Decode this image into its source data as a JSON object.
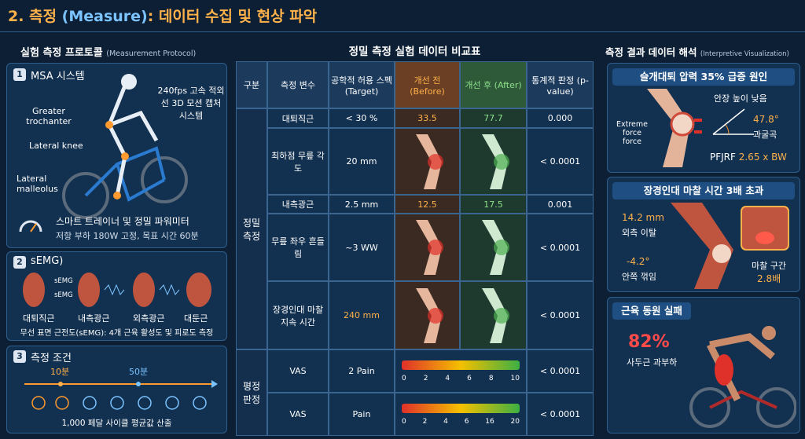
{
  "header": {
    "title_prefix": "2. 측정 ",
    "title_highlight": "(Measure)",
    "title_suffix": ": 데이터 수집 및 현상 파악"
  },
  "left": {
    "heading": "실험 측정 프로토콜",
    "heading_en": "(Measurement Protocol)",
    "msa": {
      "number": "1",
      "title": "MSA 시스템",
      "camera": "240fps 고속 적외선 3D 모션 캡처 시스템",
      "markers": [
        "Greater trochanter",
        "Lateral knee",
        "Lateral malleolus"
      ],
      "trainer": "스마트 트레이너 및 정밀 파워미터",
      "trainer_detail": "저항 부하 180W 고정, 목표 시간 60분"
    },
    "semg": {
      "number": "2",
      "title": "sEMG)",
      "sensor_labels": [
        "sEMG",
        "sEMG"
      ],
      "muscles": [
        "대퇴직근",
        "내측광근",
        "외측광근",
        "대둔근"
      ],
      "caption": "무선 표면 근전도(sEMG): 4개 근육 활성도 및 피로도 측정"
    },
    "conditions": {
      "number": "3",
      "title": "측정 조건",
      "marks": [
        "10분",
        "50분"
      ],
      "caption": "1,000 페달 사이클 평균값 산출"
    }
  },
  "table": {
    "title": "정밀 측정 실험 데이터 비교표",
    "columns": [
      "구분",
      "측정 변수",
      "공학적 허용 스펙 (Target)",
      "개선 전 (Before)",
      "개선 후 (After)",
      "통계적 판정 (p-value)"
    ],
    "groups": [
      "정밀 측정",
      "평정 판정"
    ],
    "rows": [
      {
        "variable": "대퇴직근",
        "target": "< 30 %",
        "before": 33.5,
        "after": 77.7,
        "p": "0.000"
      },
      {
        "variable": "최하점 무릎 각도",
        "target": "20 mm",
        "p": "< 0.0001"
      },
      {
        "variable": "내측광근",
        "target": "2.5 mm",
        "before": 12.5,
        "after": 17.5,
        "p": "0.001"
      },
      {
        "variable": "무릎 좌우 흔들림",
        "target": "~3 WW",
        "p": "< 0.0001"
      },
      {
        "variable": "장경인대 마찰 지속 시간",
        "target": "240 mm",
        "p": "< 0.0001"
      },
      {
        "variable": "VAS",
        "target": "2 Pain",
        "scale_ticks": [
          0,
          2,
          4,
          6,
          8,
          10
        ],
        "p": "< 0.0001"
      },
      {
        "variable": "VAS",
        "target": "Pain",
        "scale_ticks": [
          0,
          2,
          4,
          6,
          16,
          20
        ],
        "p": "< 0.0001"
      }
    ]
  },
  "right": {
    "heading": "측정 결과 데이터 해석",
    "heading_en": "(Interpretive Visualization)",
    "panel1": {
      "title": "슬개대퇴 압력 35% 급증 원인",
      "force_label": "Extreme force force",
      "saddle": "안장 높이 낮음",
      "angle": "47.8°",
      "angle_label": "과굴곡",
      "formula_prefix": "PFJRF ",
      "formula_value": "2.65 x BW"
    },
    "panel2": {
      "title": "장경인대 마찰 시간 3배 초과",
      "tilt": "14.2 mm",
      "tilt_label": "외측 이탈",
      "inward": "-4.2°",
      "inward_label": "안쪽 꺾임",
      "friction_label": "마찰 구간",
      "friction": "2.8배"
    },
    "panel3": {
      "title": "근육 동원 실패",
      "percent": "82%",
      "percent_label": "사두근 과부하"
    }
  }
}
